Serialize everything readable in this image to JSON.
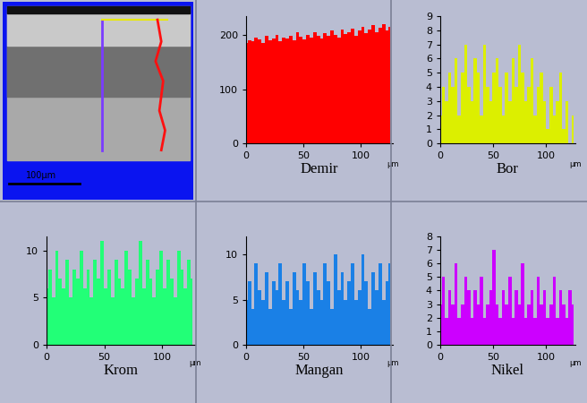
{
  "micrograph": {
    "scale_bar": "100µm"
  },
  "chart_data": [
    {
      "type": "area",
      "title": "Demir",
      "x_label": "µm",
      "color": "#ff0000",
      "x": [
        0,
        3,
        6,
        9,
        12,
        15,
        18,
        21,
        24,
        27,
        30,
        33,
        36,
        39,
        42,
        45,
        48,
        51,
        54,
        57,
        60,
        63,
        66,
        69,
        72,
        75,
        78,
        81,
        84,
        87,
        90,
        93,
        96,
        99,
        102,
        105,
        108,
        111,
        114,
        117,
        120,
        123,
        126
      ],
      "values": [
        185,
        190,
        188,
        195,
        192,
        186,
        198,
        190,
        194,
        200,
        188,
        196,
        193,
        199,
        191,
        205,
        197,
        192,
        201,
        195,
        206,
        199,
        194,
        203,
        198,
        208,
        200,
        196,
        210,
        202,
        205,
        212,
        199,
        208,
        215,
        204,
        210,
        218,
        206,
        213,
        220,
        209,
        215
      ],
      "xlim": [
        0,
        128
      ],
      "xticks": [
        0,
        50,
        100
      ],
      "ylim": [
        0,
        235
      ],
      "yticks": [
        0,
        100,
        200
      ]
    },
    {
      "type": "area",
      "title": "Bor",
      "x_label": "µm",
      "color": "#dcef00",
      "x": [
        0,
        3,
        6,
        9,
        12,
        15,
        18,
        21,
        24,
        27,
        30,
        33,
        36,
        39,
        42,
        45,
        48,
        51,
        54,
        57,
        60,
        63,
        66,
        69,
        72,
        75,
        78,
        81,
        84,
        87,
        90,
        93,
        96,
        99,
        102,
        105,
        108,
        111,
        114,
        117,
        120,
        123,
        126
      ],
      "values": [
        2,
        4,
        3,
        5,
        4,
        6,
        2,
        5,
        7,
        4,
        3,
        6,
        5,
        2,
        7,
        4,
        3,
        5,
        6,
        4,
        2,
        5,
        3,
        6,
        4,
        7,
        5,
        3,
        4,
        6,
        2,
        4,
        5,
        3,
        1,
        4,
        2,
        3,
        5,
        1,
        3,
        0,
        2
      ],
      "xlim": [
        0,
        128
      ],
      "xticks": [
        0,
        50,
        100
      ],
      "ylim": [
        0,
        9
      ],
      "yticks": [
        0,
        1,
        2,
        3,
        4,
        5,
        6,
        7,
        8,
        9
      ]
    },
    {
      "type": "area",
      "title": "Krom",
      "x_label": "µm",
      "color": "#22ff77",
      "x": [
        0,
        3,
        6,
        9,
        12,
        15,
        18,
        21,
        24,
        27,
        30,
        33,
        36,
        39,
        42,
        45,
        48,
        51,
        54,
        57,
        60,
        63,
        66,
        69,
        72,
        75,
        78,
        81,
        84,
        87,
        90,
        93,
        96,
        99,
        102,
        105,
        108,
        111,
        114,
        117,
        120,
        123,
        126
      ],
      "values": [
        6,
        8,
        5,
        10,
        7,
        6,
        9,
        5,
        8,
        7,
        10,
        6,
        8,
        5,
        9,
        7,
        11,
        6,
        8,
        5,
        9,
        7,
        6,
        10,
        8,
        5,
        7,
        11,
        6,
        9,
        7,
        5,
        8,
        10,
        6,
        9,
        7,
        5,
        10,
        8,
        6,
        9,
        7
      ],
      "xlim": [
        0,
        128
      ],
      "xticks": [
        0,
        50,
        100
      ],
      "ylim": [
        0,
        11.5
      ],
      "yticks": [
        0,
        5,
        10
      ]
    },
    {
      "type": "area",
      "title": "Mangan",
      "x_label": "µm",
      "color": "#1a80e6",
      "x": [
        0,
        3,
        6,
        9,
        12,
        15,
        18,
        21,
        24,
        27,
        30,
        33,
        36,
        39,
        42,
        45,
        48,
        51,
        54,
        57,
        60,
        63,
        66,
        69,
        72,
        75,
        78,
        81,
        84,
        87,
        90,
        93,
        96,
        99,
        102,
        105,
        108,
        111,
        114,
        117,
        120,
        123,
        126
      ],
      "values": [
        5,
        7,
        4,
        9,
        6,
        5,
        8,
        4,
        7,
        6,
        9,
        5,
        7,
        4,
        8,
        6,
        5,
        9,
        7,
        4,
        8,
        6,
        5,
        9,
        7,
        4,
        10,
        6,
        8,
        5,
        7,
        9,
        5,
        6,
        10,
        7,
        4,
        8,
        6,
        9,
        5,
        7,
        9
      ],
      "xlim": [
        0,
        128
      ],
      "xticks": [
        0,
        50,
        100
      ],
      "ylim": [
        0,
        12
      ],
      "yticks": [
        0,
        5,
        10
      ]
    },
    {
      "type": "area",
      "title": "Nikel",
      "x_label": "µm",
      "color": "#cc00ff",
      "x": [
        0,
        3,
        6,
        9,
        12,
        15,
        18,
        21,
        24,
        27,
        30,
        33,
        36,
        39,
        42,
        45,
        48,
        51,
        54,
        57,
        60,
        63,
        66,
        69,
        72,
        75,
        78,
        81,
        84,
        87,
        90,
        93,
        96,
        99,
        102,
        105,
        108,
        111,
        114,
        117,
        120,
        123,
        126
      ],
      "values": [
        3,
        5,
        2,
        4,
        3,
        6,
        2,
        3,
        5,
        4,
        2,
        4,
        3,
        5,
        2,
        3,
        4,
        7,
        3,
        2,
        4,
        3,
        5,
        2,
        4,
        3,
        6,
        2,
        3,
        4,
        2,
        5,
        3,
        4,
        2,
        3,
        5,
        2,
        4,
        3,
        2,
        4,
        3
      ],
      "xlim": [
        0,
        128
      ],
      "xticks": [
        0,
        50,
        100
      ],
      "ylim": [
        0,
        8
      ],
      "yticks": [
        0,
        1,
        2,
        3,
        4,
        5,
        6,
        7,
        8
      ]
    }
  ]
}
